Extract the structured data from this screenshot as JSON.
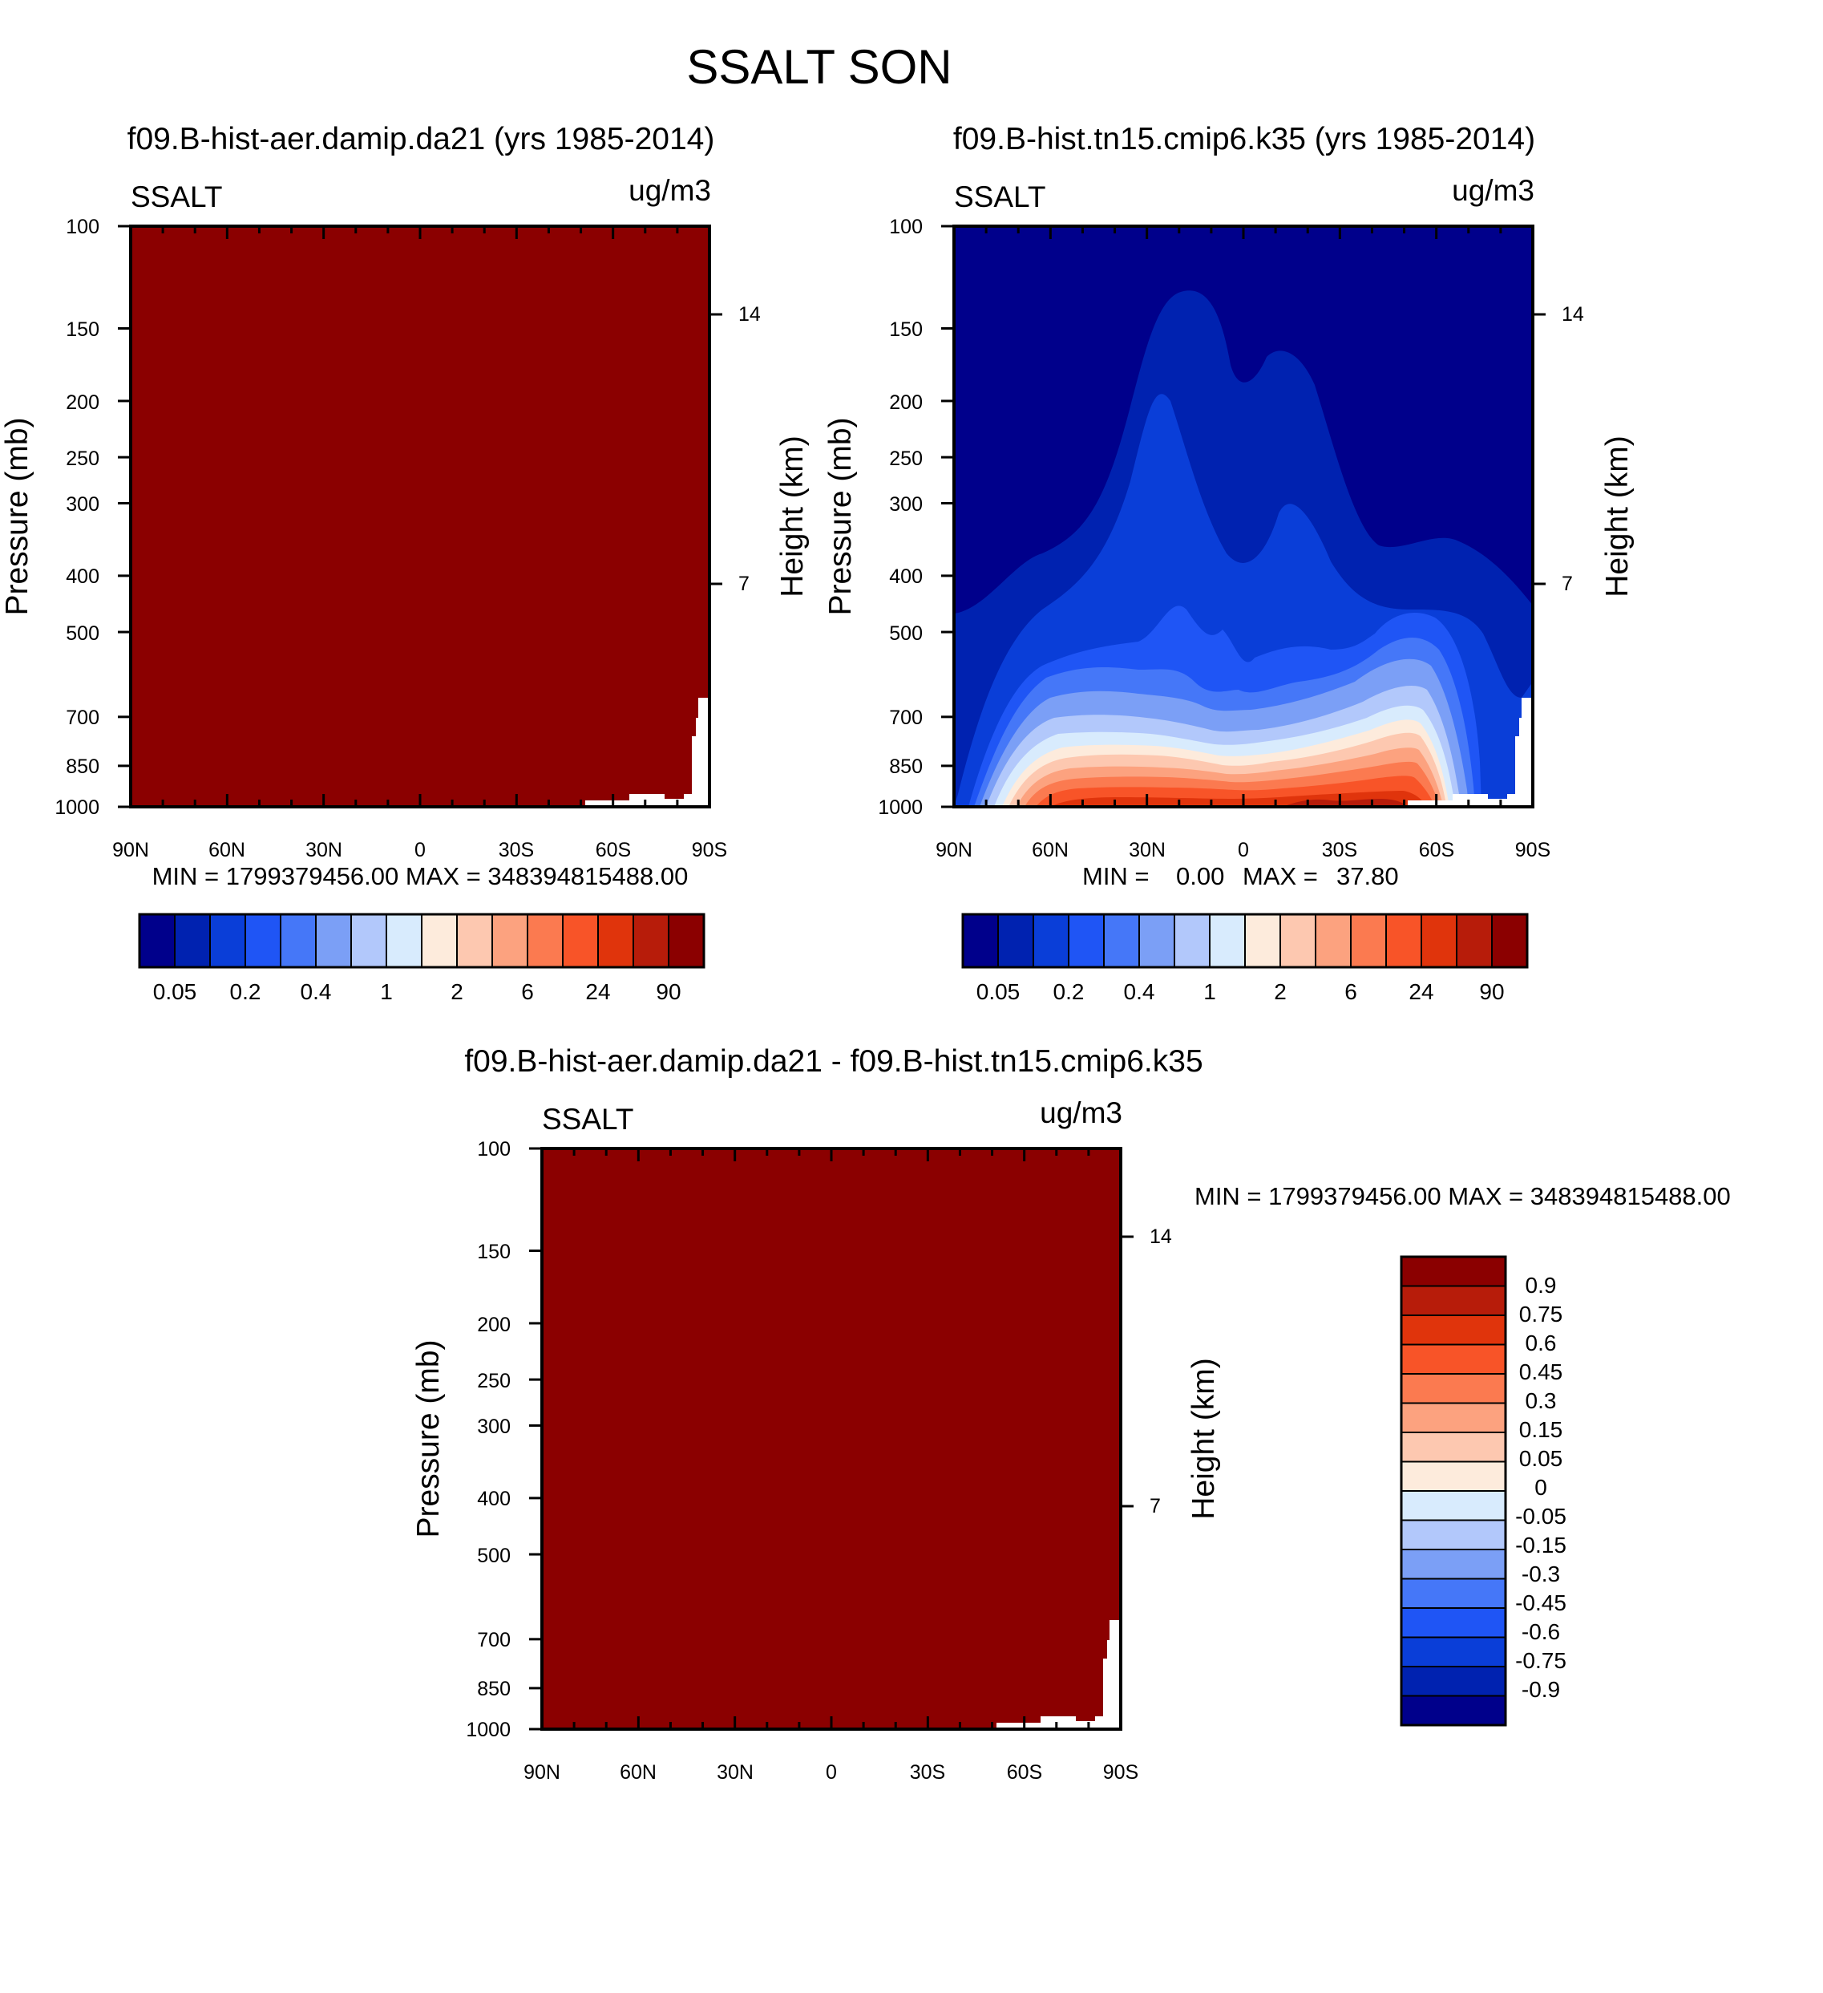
{
  "figure": {
    "title": "SSALT SON"
  },
  "chart_data": [
    {
      "type": "heatmap",
      "subtitle": "f09.B-hist-aer.damip.da21 (yrs 1985-2014)",
      "corner_left": "SSALT",
      "corner_right": "ug/m3",
      "ylabel": "Pressure (mb)",
      "ylabel_right": "Height (km)",
      "x_ticks": [
        "90N",
        "60N",
        "30N",
        "0",
        "30S",
        "60S",
        "90S"
      ],
      "y_ticks": [
        "100",
        "150",
        "200",
        "250",
        "300",
        "400",
        "500",
        "700",
        "850",
        "1000"
      ],
      "y_ticks_right": [
        "14",
        "7"
      ],
      "xlim": [
        90,
        -90
      ],
      "ylim": [
        1000,
        100
      ],
      "log_y": true,
      "field_fill": "#8b0000",
      "stats": "MIN = 1799379456.00  MAX = 348394815488.00",
      "colorbar": {
        "orientation": "horizontal",
        "labels": [
          "0.05",
          "0.2",
          "0.4",
          "1",
          "2",
          "6",
          "24",
          "90"
        ]
      }
    },
    {
      "type": "heatmap",
      "subtitle": "f09.B-hist.tn15.cmip6.k35 (yrs 1985-2014)",
      "corner_left": "SSALT",
      "corner_right": "ug/m3",
      "ylabel": "Pressure (mb)",
      "ylabel_right": "Height (km)",
      "x_ticks": [
        "90N",
        "60N",
        "30N",
        "0",
        "30S",
        "60S",
        "90S"
      ],
      "y_ticks": [
        "100",
        "150",
        "200",
        "250",
        "300",
        "400",
        "500",
        "700",
        "850",
        "1000"
      ],
      "y_ticks_right": [
        "14",
        "7"
      ],
      "xlim": [
        90,
        -90
      ],
      "ylim": [
        1000,
        100
      ],
      "log_y": true,
      "stats_prefix": "MIN =",
      "stats_min": "0.00",
      "stats_mid": "MAX =",
      "stats_max": "37.80",
      "colorbar": {
        "orientation": "horizontal",
        "labels": [
          "0.05",
          "0.2",
          "0.4",
          "1",
          "2",
          "6",
          "24",
          "90"
        ]
      }
    },
    {
      "type": "heatmap",
      "subtitle": "f09.B-hist-aer.damip.da21 - f09.B-hist.tn15.cmip6.k35",
      "corner_left": "SSALT",
      "corner_right": "ug/m3",
      "ylabel": "Pressure (mb)",
      "ylabel_right": "Height (km)",
      "x_ticks": [
        "90N",
        "60N",
        "30N",
        "0",
        "30S",
        "60S",
        "90S"
      ],
      "y_ticks": [
        "100",
        "150",
        "200",
        "250",
        "300",
        "400",
        "500",
        "700",
        "850",
        "1000"
      ],
      "y_ticks_right": [
        "14",
        "7"
      ],
      "xlim": [
        90,
        -90
      ],
      "ylim": [
        1000,
        100
      ],
      "log_y": true,
      "field_fill": "#8b0000",
      "stats": "MIN = 1799379456.00  MAX = 348394815488.00",
      "colorbar": {
        "orientation": "vertical",
        "labels": [
          "0.9",
          "0.75",
          "0.6",
          "0.45",
          "0.3",
          "0.15",
          "0.05",
          "0",
          "-0.05",
          "-0.15",
          "-0.3",
          "-0.45",
          "-0.6",
          "-0.75",
          "-0.9"
        ]
      }
    }
  ],
  "palettes": {
    "concentration": [
      "#00008b",
      "#0022b0",
      "#0a3ed8",
      "#1f55f5",
      "#4577f8",
      "#7b9ff6",
      "#b2c8fb",
      "#d8ebfd",
      "#fdebdc",
      "#fdc8b0",
      "#fca27f",
      "#fb7a50",
      "#f85428",
      "#e0340c",
      "#b71c0a",
      "#8b0000"
    ],
    "difference": [
      "#00008b",
      "#0022b0",
      "#0a3ed8",
      "#1f55f5",
      "#4577f8",
      "#7b9ff6",
      "#b2c8fb",
      "#d8ebfd",
      "#fdebdc",
      "#fdc8b0",
      "#fca27f",
      "#fb7a50",
      "#f85428",
      "#e0340c",
      "#b71c0a",
      "#8b0000"
    ]
  }
}
